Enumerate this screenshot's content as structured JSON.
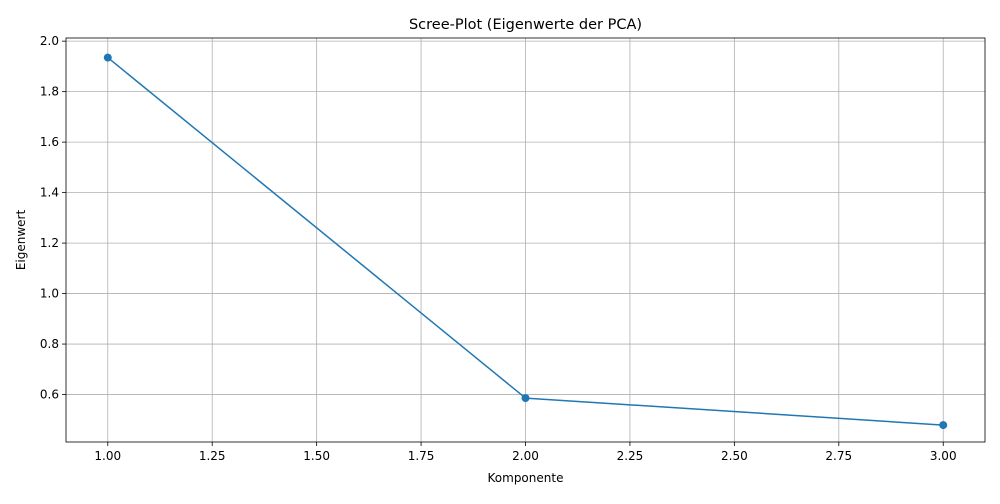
{
  "chart_data": {
    "type": "line",
    "title": "Scree-Plot (Eigenwerte der PCA)",
    "xlabel": "Komponente",
    "ylabel": "Eigenwert",
    "x": [
      1,
      2,
      3
    ],
    "series": [
      {
        "values": [
          1.935,
          0.586,
          0.479
        ],
        "color": "#1f77b4",
        "marker": "circle"
      }
    ],
    "xlim": [
      0.9,
      3.1
    ],
    "ylim": [
      0.412,
      2.0125
    ],
    "xticks": [
      1.0,
      1.25,
      1.5,
      1.75,
      2.0,
      2.25,
      2.5,
      2.75,
      3.0
    ],
    "xtick_labels": [
      "1.00",
      "1.25",
      "1.50",
      "1.75",
      "2.00",
      "2.25",
      "2.50",
      "2.75",
      "3.00"
    ],
    "yticks": [
      0.6,
      0.8,
      1.0,
      1.2,
      1.4,
      1.6,
      1.8,
      2.0
    ],
    "ytick_labels": [
      "0.6",
      "0.8",
      "1.0",
      "1.2",
      "1.4",
      "1.6",
      "1.8",
      "2.0"
    ],
    "grid": true,
    "legend": false
  }
}
